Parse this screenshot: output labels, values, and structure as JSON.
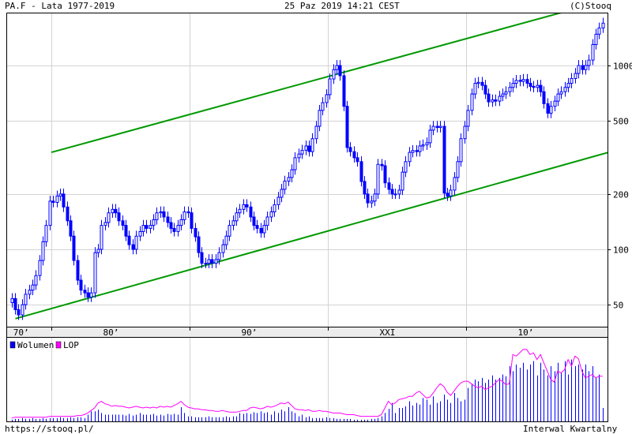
{
  "header": {
    "title": "PA.F - Lata 1977-2019",
    "datetime": "25 Paz 2019 14:21 CEST",
    "copyright": "(C)Stooq"
  },
  "footer": {
    "url": "https://stooq.pl/",
    "interval": "Interwal Kwartalny"
  },
  "colors": {
    "candle": "#0000ff",
    "channel": "#009900",
    "volume": "#0000ff",
    "lop": "#ff00ff",
    "grid": "#d3d3d3"
  },
  "chart_data": [
    {
      "type": "candlestick",
      "title": "PA.F - Lata 1977-2019",
      "interval": "quarterly",
      "y_scale": "log",
      "y_ticks": [
        "1000",
        "500",
        "200",
        "100",
        "50"
      ],
      "x_ticks": [
        "70’",
        "80’",
        "90’",
        "XXI",
        "10’"
      ],
      "x_range": [
        1977,
        2019.75
      ],
      "grid": true,
      "start_year": 1977,
      "close": [
        54,
        47,
        44,
        50,
        57,
        60,
        64,
        72,
        87,
        110,
        135,
        183,
        180,
        195,
        200,
        170,
        143,
        118,
        87,
        68,
        60,
        58,
        55,
        58,
        96,
        100,
        135,
        140,
        158,
        165,
        158,
        143,
        135,
        118,
        106,
        100,
        118,
        125,
        135,
        130,
        135,
        145,
        158,
        160,
        150,
        140,
        130,
        125,
        135,
        145,
        160,
        158,
        130,
        117,
        96,
        84,
        84,
        88,
        84,
        88,
        96,
        106,
        118,
        135,
        143,
        158,
        165,
        175,
        170,
        150,
        135,
        130,
        123,
        135,
        150,
        160,
        175,
        192,
        212,
        235,
        246,
        271,
        315,
        330,
        346,
        365,
        340,
        400,
        467,
        570,
        628,
        694,
        845,
        950,
        1000,
        880,
        600,
        358,
        340,
        315,
        300,
        234,
        200,
        179,
        183,
        200,
        290,
        285,
        230,
        212,
        200,
        200,
        210,
        263,
        300,
        337,
        345,
        340,
        365,
        370,
        380,
        445,
        467,
        460,
        467,
        202,
        195,
        210,
        246,
        300,
        400,
        467,
        570,
        700,
        800,
        810,
        780,
        700,
        634,
        650,
        640,
        680,
        700,
        720,
        760,
        800,
        830,
        820,
        840,
        800,
        770,
        760,
        780,
        720,
        620,
        550,
        600,
        640,
        700,
        720,
        760,
        800,
        850,
        905,
        1000,
        950,
        1000,
        1070,
        1300,
        1480,
        1600,
        1700
      ],
      "trend_lines": [
        {
          "from": [
            1980.0,
            337
          ],
          "to": [
            2016.9,
            1940
          ]
        },
        {
          "from": [
            1977.4,
            42
          ],
          "to": [
            2020.3,
            337
          ]
        }
      ]
    },
    {
      "type": "bar+line",
      "legend": [
        "Wolumen",
        "LOP"
      ],
      "legend_position": "top-left",
      "unit": "relative %",
      "series": [
        {
          "name": "Wolumen",
          "type": "bar",
          "values": [
            2,
            3,
            3,
            4,
            3,
            3,
            4,
            3,
            3,
            4,
            3,
            4,
            4,
            4,
            5,
            4,
            4,
            5,
            4,
            5,
            5,
            4,
            8,
            12,
            12,
            14,
            10,
            8,
            8,
            8,
            8,
            8,
            8,
            7,
            9,
            7,
            8,
            10,
            8,
            8,
            8,
            9,
            7,
            8,
            7,
            9,
            8,
            9,
            8,
            17,
            10,
            6,
            6,
            5,
            5,
            5,
            5,
            6,
            5,
            5,
            5,
            5,
            6,
            5,
            6,
            6,
            10,
            9,
            10,
            9,
            11,
            10,
            12,
            10,
            11,
            8,
            12,
            10,
            14,
            12,
            17,
            12,
            10,
            6,
            8,
            5,
            6,
            4,
            4,
            4,
            4,
            5,
            4,
            4,
            3,
            3,
            3,
            3,
            3,
            2,
            2,
            2,
            2,
            2,
            3,
            3,
            4,
            6,
            10,
            15,
            22,
            10,
            16,
            16,
            18,
            24,
            19,
            22,
            20,
            28,
            26,
            20,
            30,
            22,
            24,
            32,
            26,
            22,
            34,
            28,
            24,
            26,
            40,
            45,
            50,
            48,
            52,
            46,
            50,
            55,
            50,
            52,
            56,
            54,
            66,
            60,
            68,
            64,
            70,
            62,
            68,
            72,
            55,
            70,
            62,
            55,
            66,
            60,
            70,
            58,
            72,
            56,
            74,
            66,
            68,
            62,
            68,
            60,
            66,
            52,
            56,
            16
          ]
        },
        {
          "name": "LOP",
          "type": "line",
          "values": [
            4,
            5,
            5,
            5,
            5,
            5,
            5,
            5,
            5,
            5,
            5,
            6,
            6,
            6,
            6,
            6,
            6,
            6,
            6,
            7,
            7,
            8,
            10,
            13,
            16,
            22,
            24,
            21,
            20,
            18,
            19,
            18,
            18,
            17,
            16,
            17,
            18,
            17,
            16,
            17,
            16,
            17,
            16,
            18,
            17,
            18,
            17,
            19,
            21,
            24,
            20,
            17,
            16,
            15,
            15,
            14,
            14,
            13,
            13,
            12,
            12,
            13,
            12,
            11,
            11,
            11,
            12,
            13,
            13,
            16,
            17,
            16,
            15,
            16,
            18,
            17,
            18,
            20,
            22,
            21,
            23,
            19,
            15,
            14,
            14,
            13,
            14,
            12,
            12,
            13,
            12,
            12,
            11,
            10,
            10,
            10,
            9,
            8,
            8,
            8,
            7,
            6,
            6,
            6,
            6,
            6,
            6,
            8,
            16,
            24,
            20,
            22,
            26,
            27,
            28,
            30,
            30,
            34,
            36,
            32,
            28,
            29,
            34,
            40,
            45,
            42,
            35,
            31,
            36,
            42,
            46,
            48,
            48,
            45,
            42,
            40,
            42,
            38,
            40,
            42,
            46,
            50,
            48,
            44,
            45,
            80,
            78,
            82,
            86,
            86,
            80,
            82,
            74,
            80,
            70,
            60,
            50,
            47,
            60,
            58,
            62,
            74,
            66,
            78,
            75,
            60,
            52,
            54,
            56,
            52,
            54,
            54
          ]
        }
      ]
    }
  ]
}
